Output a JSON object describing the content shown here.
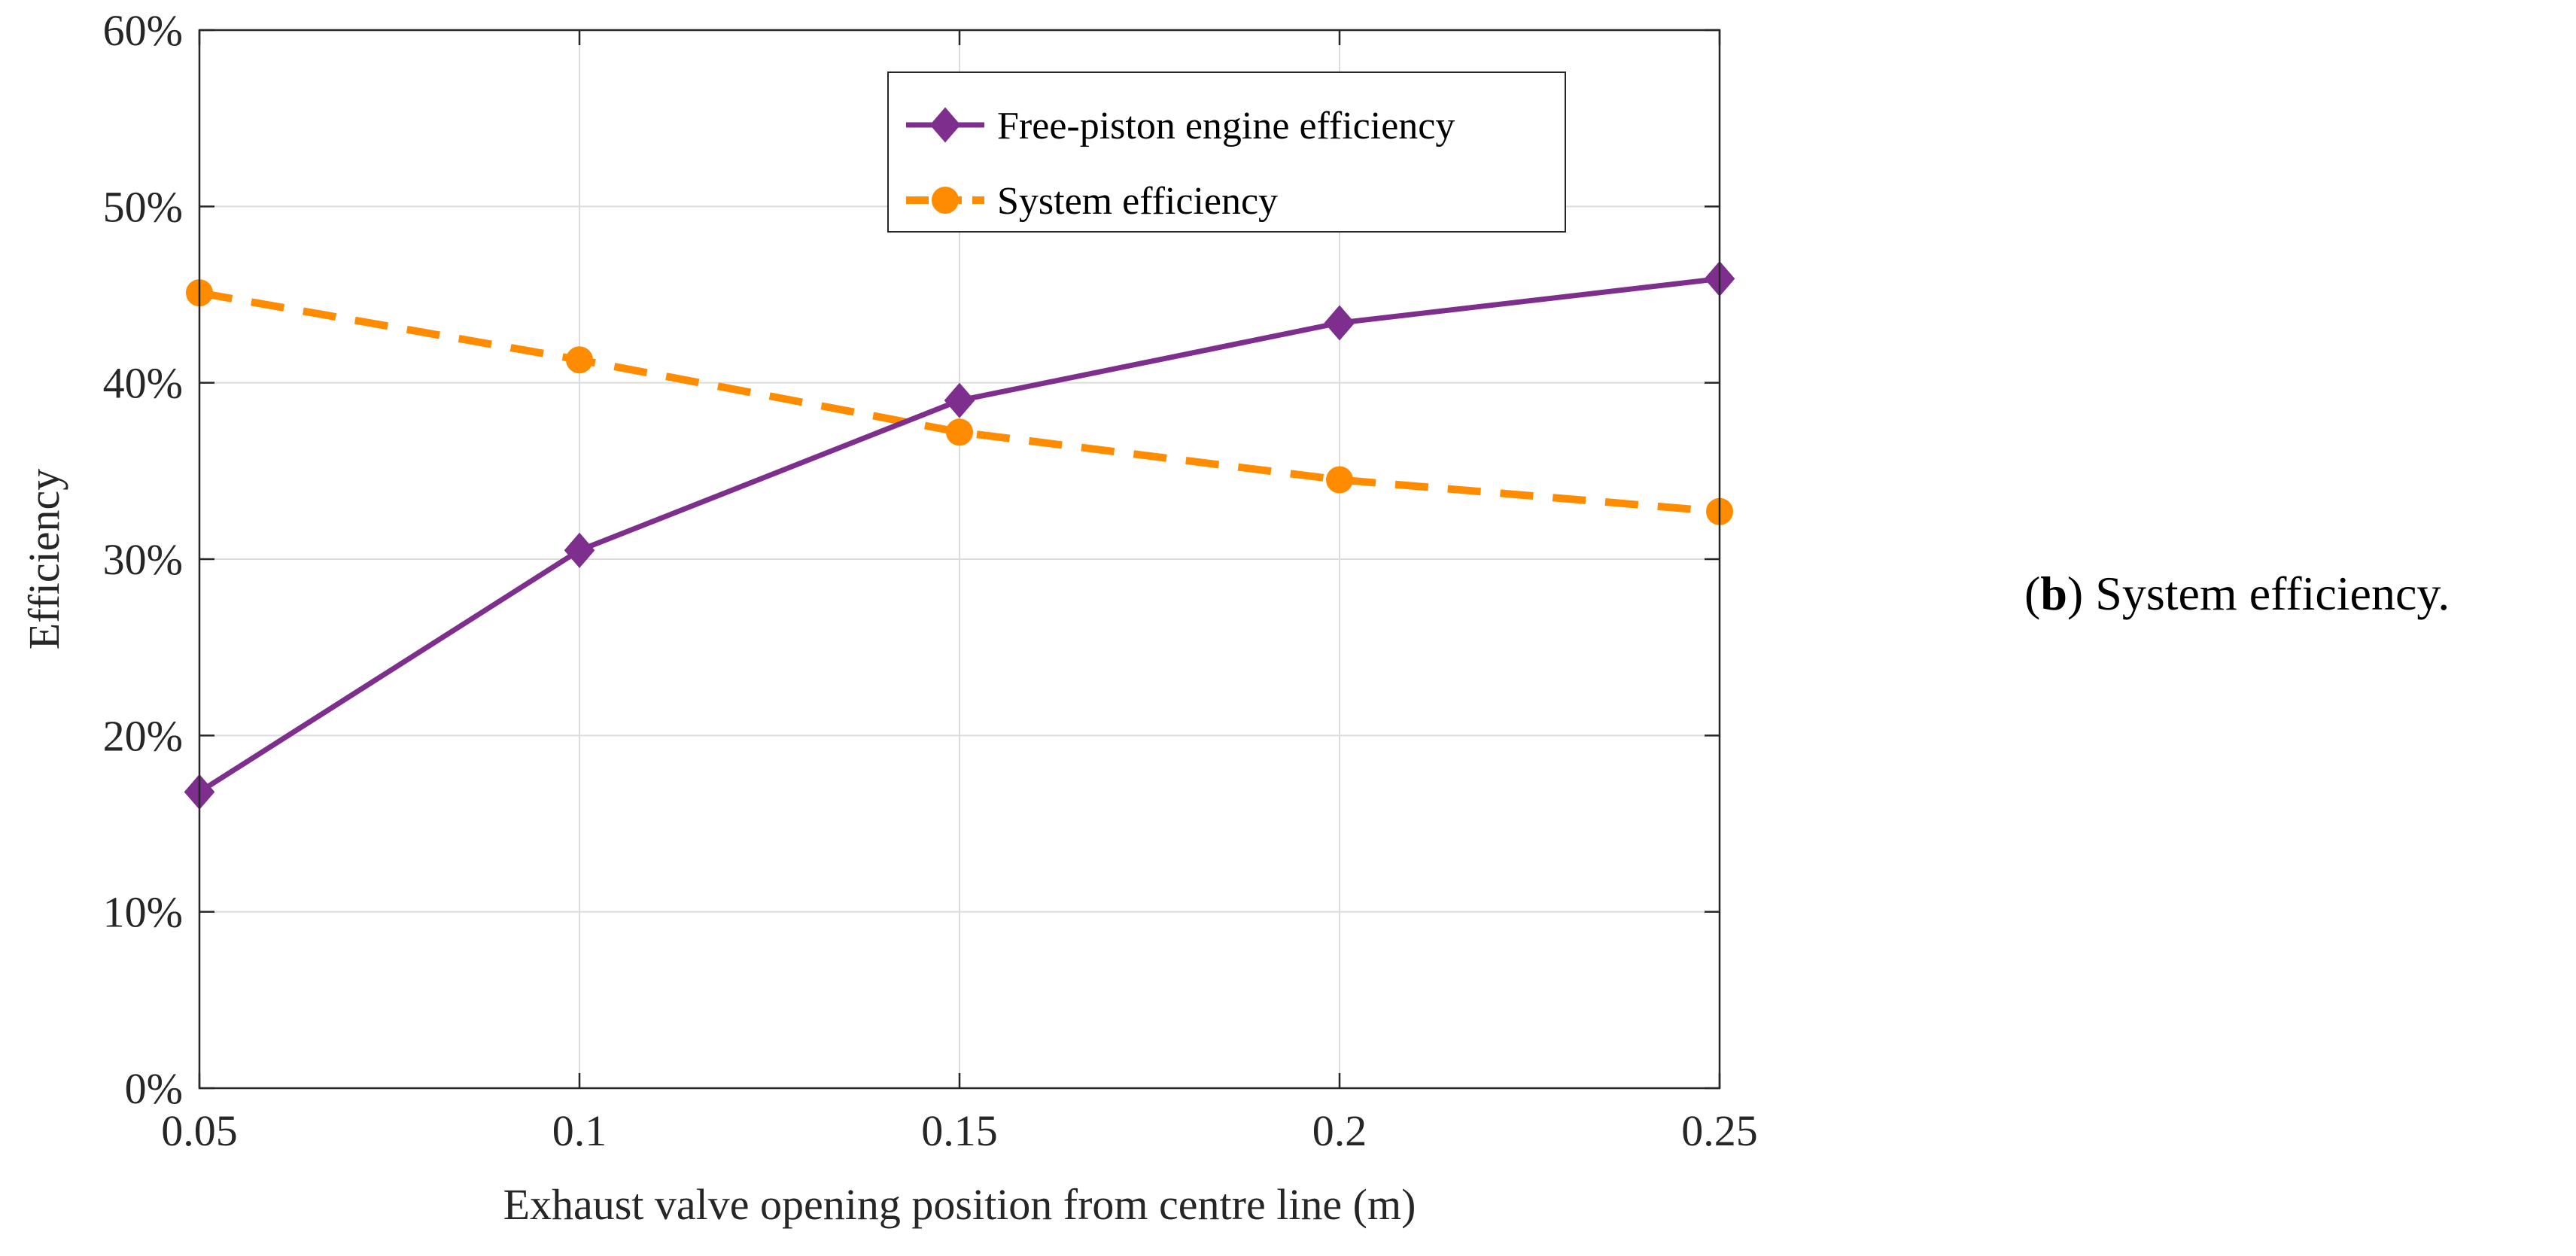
{
  "caption": {
    "label": "b",
    "open": "(",
    "close": ")",
    "text": " System efficiency."
  },
  "colors": {
    "engine": "#7e2f8e",
    "system": "#ff8c00",
    "grid": "#dcdcdc",
    "axis": "#262626"
  },
  "chart_data": {
    "type": "line",
    "title": "",
    "xlabel": "Exhaust valve opening position from centre line (m)",
    "ylabel": "Efficiency",
    "x": [
      0.05,
      0.1,
      0.15,
      0.2,
      0.25
    ],
    "xlim": [
      0.05,
      0.25
    ],
    "ylim": [
      0,
      60
    ],
    "xticks": [
      0.05,
      0.1,
      0.15,
      0.2,
      0.25
    ],
    "xtick_labels": [
      "0.05",
      "0.1",
      "0.15",
      "0.2",
      "0.25"
    ],
    "yticks": [
      0,
      10,
      20,
      30,
      40,
      50,
      60
    ],
    "ytick_labels": [
      "0%",
      "10%",
      "20%",
      "30%",
      "40%",
      "50%",
      "60%"
    ],
    "grid": true,
    "legend_position": "top-right",
    "series": [
      {
        "name": "Free-piston engine efficiency",
        "values": [
          16.8,
          30.5,
          39.0,
          43.4,
          45.9
        ],
        "line_style": "solid",
        "marker": "diamond",
        "color": "#7e2f8e"
      },
      {
        "name": "System efficiency",
        "values": [
          45.1,
          41.3,
          37.2,
          34.5,
          32.7
        ],
        "line_style": "dashed",
        "marker": "circle",
        "color": "#ff8c00"
      }
    ]
  }
}
